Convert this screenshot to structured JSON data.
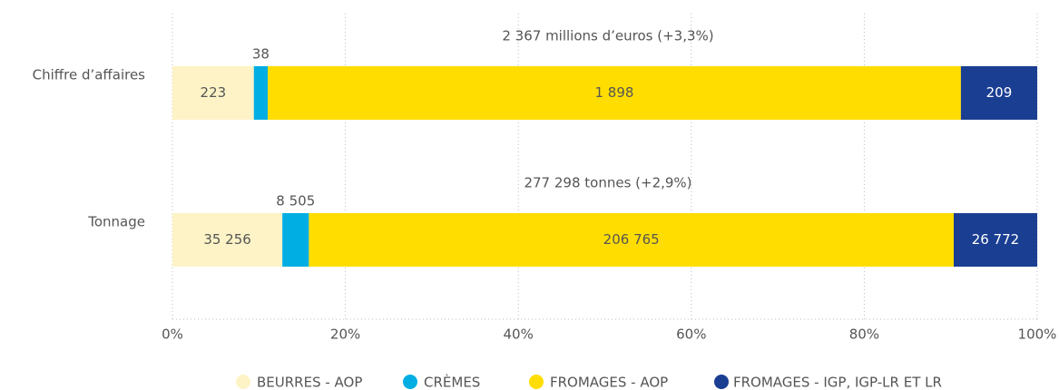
{
  "chart_data": {
    "type": "bar",
    "orientation": "horizontal",
    "stacked_percent": true,
    "categories": [
      "Chiffre d’affaires",
      "Tonnage"
    ],
    "annotations": [
      "2 367 millions d’euros (+3,3%)",
      "277 298 tonnes (+2,9%)"
    ],
    "series": [
      {
        "name": "BEURRES - AOP",
        "color": "#fdf3c6",
        "values": [
          223,
          35256
        ],
        "value_labels": [
          "223",
          "35 256"
        ]
      },
      {
        "name": "CRÈMES",
        "color": "#00aee4",
        "values": [
          38,
          8505
        ],
        "value_labels": [
          "38",
          "8 505"
        ]
      },
      {
        "name": "FROMAGES - AOP",
        "color": "#ffdd00",
        "values": [
          1898,
          206765
        ],
        "value_labels": [
          "1 898",
          "206 765"
        ]
      },
      {
        "name": "FROMAGES - IGP, IGP-LR ET LR",
        "color": "#1a3e92",
        "values": [
          209,
          26772
        ],
        "value_labels": [
          "209",
          "26 772"
        ]
      }
    ],
    "xlim": [
      0,
      100
    ],
    "xticks": [
      {
        "value": 0,
        "label": "0%"
      },
      {
        "value": 20,
        "label": "20%"
      },
      {
        "value": 40,
        "label": "40%"
      },
      {
        "value": 60,
        "label": "60%"
      },
      {
        "value": 80,
        "label": "80%"
      },
      {
        "value": 100,
        "label": "100%"
      }
    ],
    "grid": true,
    "legend": "bottom"
  }
}
